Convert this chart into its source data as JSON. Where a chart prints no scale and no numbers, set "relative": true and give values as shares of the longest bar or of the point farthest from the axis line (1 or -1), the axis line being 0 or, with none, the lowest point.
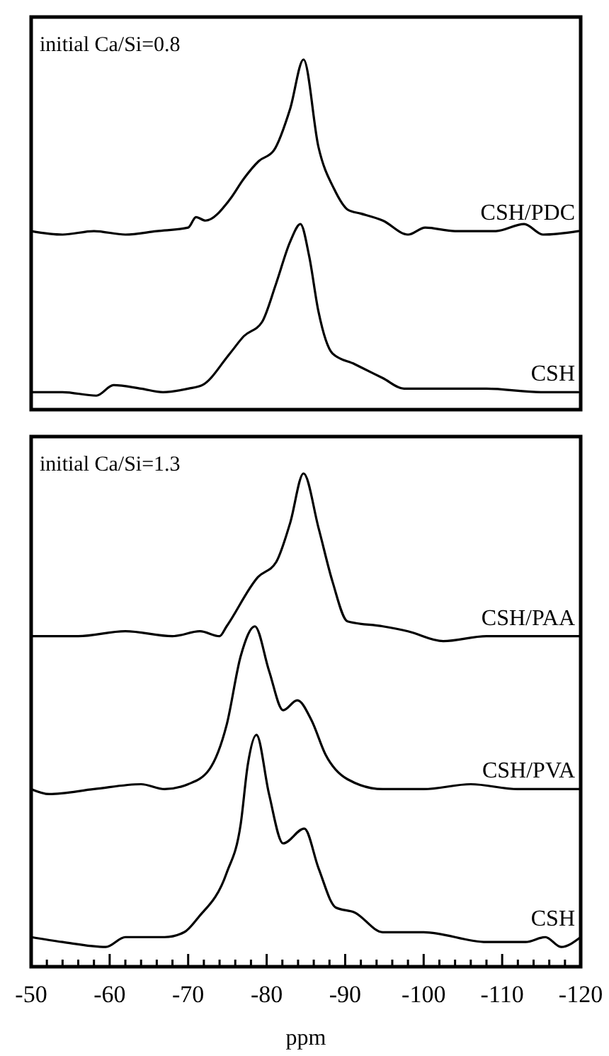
{
  "chart_data": [
    {
      "type": "line",
      "relative": true,
      "tick_labels": false,
      "xlim": [
        -50,
        -120
      ],
      "annotations": [
        "initial Ca/Si=0.8"
      ],
      "series": [
        {
          "name": "CSH/PDC",
          "color": "#000000",
          "x": [
            -50,
            -54,
            -58,
            -62,
            -66,
            -70,
            -71,
            -72.2,
            -75.3,
            -77.1,
            -79,
            -80.9,
            -83,
            -84.7,
            -86.6,
            -88.6,
            -90.4,
            -92,
            -94.8,
            -98,
            -100.2,
            -104,
            -109.2,
            -112.8,
            -115.2,
            -119.7
          ],
          "values": [
            0.51,
            0.5,
            0.51,
            0.5,
            0.51,
            0.52,
            0.55,
            0.54,
            0.6,
            0.66,
            0.71,
            0.74,
            0.86,
            1.0,
            0.75,
            0.63,
            0.57,
            0.56,
            0.54,
            0.5,
            0.52,
            0.51,
            0.51,
            0.53,
            0.5,
            0.51
          ]
        },
        {
          "name": "CSH",
          "color": "#000000",
          "x": [
            -50,
            -54,
            -58.3,
            -60.5,
            -64,
            -66.8,
            -70,
            -71.8,
            -75.3,
            -77.1,
            -79.4,
            -81.2,
            -83,
            -84.3,
            -85.4,
            -86.6,
            -88.4,
            -91.2,
            -94.8,
            -97.5,
            -100,
            -108,
            -115,
            -119.7
          ],
          "values": [
            0.05,
            0.05,
            0.04,
            0.07,
            0.06,
            0.05,
            0.06,
            0.07,
            0.16,
            0.21,
            0.25,
            0.36,
            0.48,
            0.53,
            0.44,
            0.28,
            0.16,
            0.13,
            0.09,
            0.06,
            0.06,
            0.06,
            0.05,
            0.05
          ]
        }
      ]
    },
    {
      "type": "line",
      "relative": true,
      "tick_labels": "x",
      "xlabel": "ppm",
      "xlim": [
        -50,
        -120
      ],
      "xticks": [
        -50,
        {
          "value": -52,
          "label": null
        },
        {
          "value": -54,
          "label": null
        },
        {
          "value": -56,
          "label": null
        },
        {
          "value": -58,
          "label": null
        },
        -60,
        {
          "value": -62,
          "label": null
        },
        {
          "value": -64,
          "label": null
        },
        {
          "value": -66,
          "label": null
        },
        {
          "value": -68,
          "label": null
        },
        -70,
        {
          "value": -72,
          "label": null
        },
        {
          "value": -74,
          "label": null
        },
        {
          "value": -76,
          "label": null
        },
        {
          "value": -78,
          "label": null
        },
        -80,
        {
          "value": -82,
          "label": null
        },
        {
          "value": -84,
          "label": null
        },
        {
          "value": -86,
          "label": null
        },
        {
          "value": -88,
          "label": null
        },
        -90,
        {
          "value": -92,
          "label": null
        },
        {
          "value": -94,
          "label": null
        },
        {
          "value": -96,
          "label": null
        },
        {
          "value": -98,
          "label": null
        },
        -100,
        {
          "value": -102,
          "label": null
        },
        {
          "value": -104,
          "label": null
        },
        {
          "value": -106,
          "label": null
        },
        {
          "value": -108,
          "label": null
        },
        -110,
        {
          "value": -112,
          "label": null
        },
        {
          "value": -114,
          "label": null
        },
        {
          "value": -116,
          "label": null
        },
        {
          "value": -118,
          "label": null
        },
        -120
      ],
      "annotations": [
        "initial Ca/Si=1.3"
      ],
      "series": [
        {
          "name": "CSH/PAA",
          "color": "#000000",
          "x": [
            -50,
            -56,
            -62,
            -68,
            -71.5,
            -74,
            -74.9,
            -78.9,
            -81.2,
            -83,
            -84.7,
            -86.6,
            -88.4,
            -90.3,
            -94.8,
            -98,
            -102.5,
            -108,
            -114,
            -120
          ],
          "values": [
            0.67,
            0.67,
            0.68,
            0.67,
            0.68,
            0.67,
            0.69,
            0.79,
            0.82,
            0.9,
            1.0,
            0.89,
            0.78,
            0.7,
            0.69,
            0.68,
            0.66,
            0.67,
            0.67,
            0.67
          ]
        },
        {
          "name": "CSH/PVA",
          "color": "#000000",
          "x": [
            -50,
            -52.3,
            -58,
            -64,
            -67,
            -70,
            -72.7,
            -74.9,
            -76.7,
            -78.5,
            -80.3,
            -82.1,
            -83.9,
            -85.7,
            -87.5,
            -90.3,
            -94.8,
            -100,
            -106,
            -112,
            -120
          ],
          "values": [
            0.36,
            0.35,
            0.36,
            0.37,
            0.36,
            0.37,
            0.4,
            0.49,
            0.63,
            0.69,
            0.6,
            0.52,
            0.54,
            0.5,
            0.43,
            0.38,
            0.36,
            0.36,
            0.37,
            0.36,
            0.36
          ]
        },
        {
          "name": "CSH",
          "color": "#000000",
          "x": [
            -50,
            -54,
            -59.5,
            -62,
            -67,
            -69.5,
            -71.3,
            -74.9,
            -76.7,
            -77.6,
            -78.7,
            -80.3,
            -82.1,
            -84.8,
            -86.6,
            -88.8,
            -91.2,
            -94.8,
            -100,
            -108,
            -113,
            -115.5,
            -117.5,
            -120
          ],
          "values": [
            0.06,
            0.05,
            0.04,
            0.06,
            0.06,
            0.07,
            0.1,
            0.19,
            0.29,
            0.41,
            0.47,
            0.35,
            0.25,
            0.28,
            0.2,
            0.12,
            0.11,
            0.07,
            0.07,
            0.05,
            0.05,
            0.06,
            0.04,
            0.06
          ]
        }
      ]
    }
  ]
}
